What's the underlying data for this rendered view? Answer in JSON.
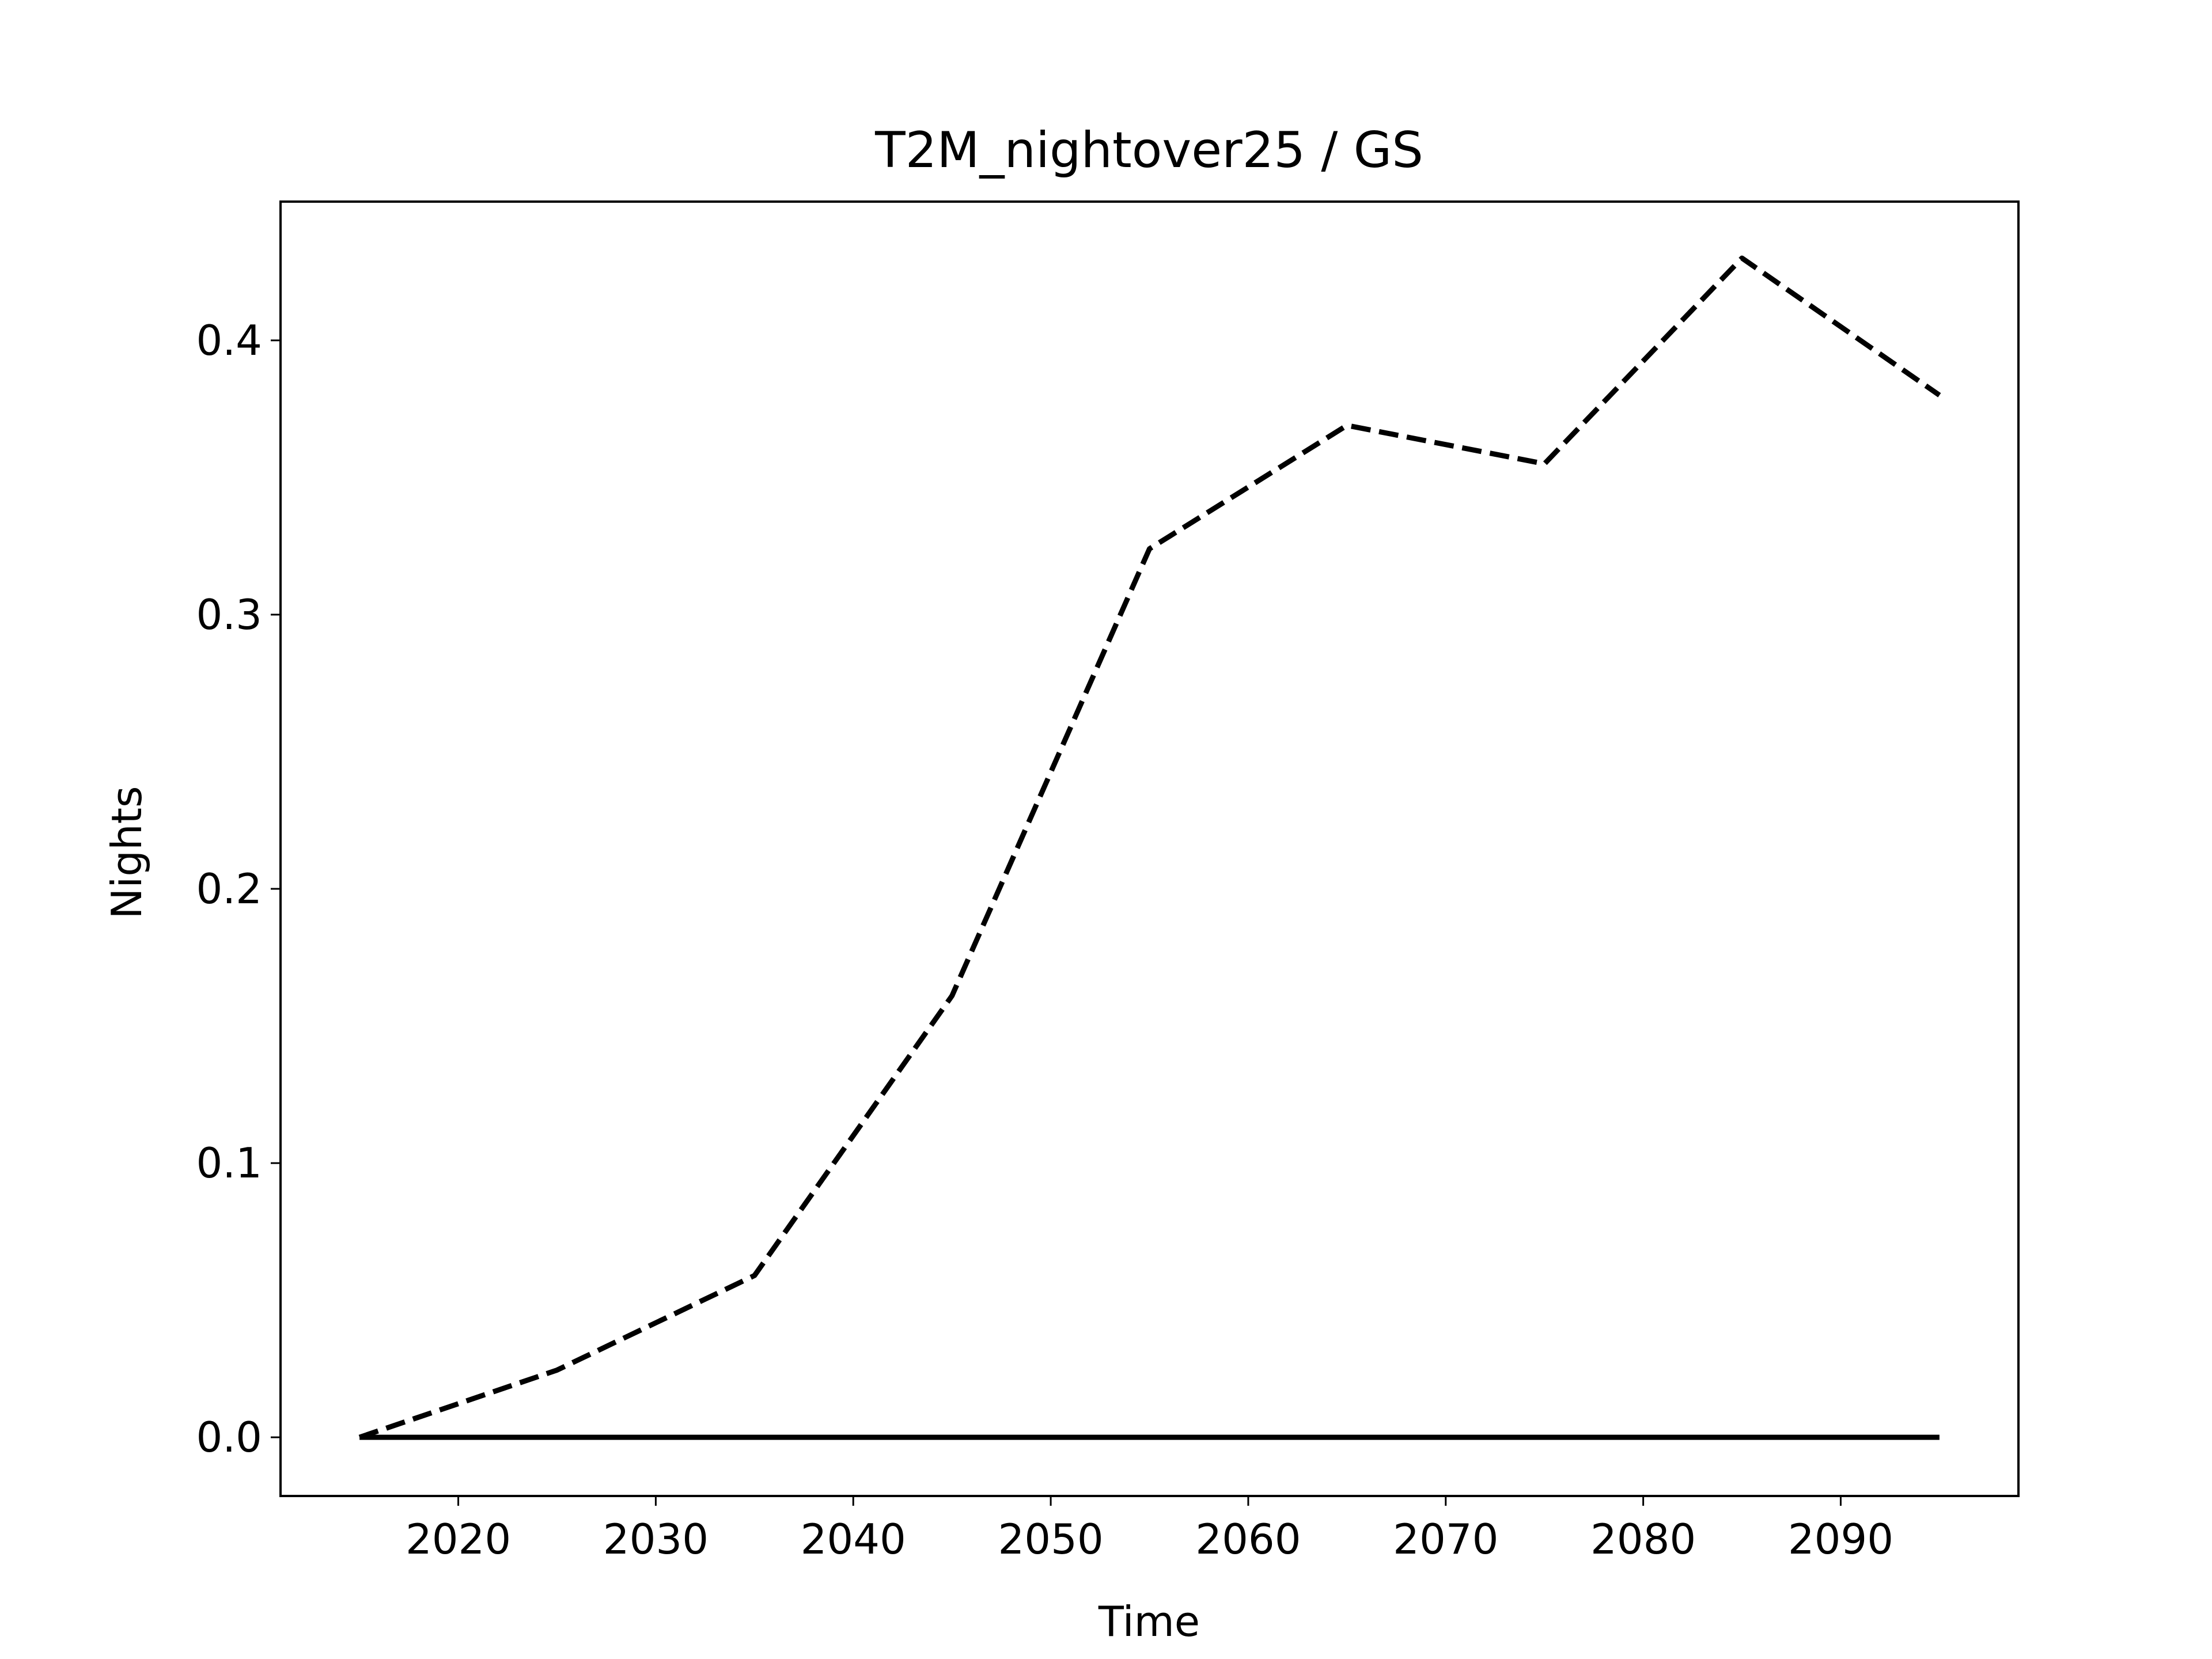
{
  "chart_data": {
    "type": "line",
    "title": "T2M_nightover25 / GS",
    "xlabel": "Time",
    "ylabel": "Nights",
    "x": [
      2015,
      2025,
      2035,
      2045,
      2055,
      2065,
      2075,
      2085,
      2095
    ],
    "series": [
      {
        "color": "#000000",
        "dash": true,
        "values": [
          0,
          0.0245,
          0.059,
          0.161,
          0.324,
          0.369,
          0.355,
          0.43,
          0.38
        ]
      },
      {
        "color": "#000000",
        "dash": false,
        "values": [
          0,
          0,
          0,
          0,
          0,
          0,
          0,
          0,
          0
        ]
      }
    ],
    "xlim": [
      2011,
      2099
    ],
    "xticks": [
      2020,
      2030,
      2040,
      2050,
      2060,
      2070,
      2080,
      2090
    ],
    "ylim": [
      -0.0214,
      0.4506
    ],
    "yticks": [
      {
        "value": 0,
        "label": "0.0"
      },
      {
        "value": 0.1,
        "label": "0.1"
      },
      {
        "value": 0.2,
        "label": "0.2"
      },
      {
        "value": 0.3,
        "label": "0.3"
      },
      {
        "value": 0.4,
        "label": "0.4"
      }
    ],
    "grid": false
  }
}
